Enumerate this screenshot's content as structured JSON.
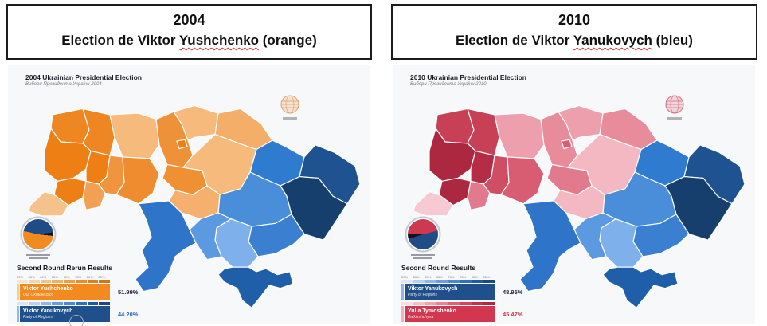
{
  "page": {
    "background": "#ffffff"
  },
  "panels": [
    {
      "header": {
        "year": "2004",
        "title_prefix": "Election de Viktor ",
        "candidate": "Yushchenko",
        "title_suffix": " (orange)"
      },
      "map_title": "2004 Ukrainian Presidential Election",
      "map_subtitle": "Вибори Президента України 2004",
      "map_bg": "#f7f8fa",
      "logo_color": "#e2a268",
      "pie": {
        "from": "96deg",
        "slices": [
          {
            "color": "#F28A1F",
            "start": 0,
            "end": 52
          },
          {
            "color": "#1F4C86",
            "start": 52,
            "end": 96.2
          },
          {
            "color": "#14141c",
            "start": 96.2,
            "end": 100
          }
        ]
      },
      "legend": {
        "heading": "Second Round Rerun Results",
        "ticks": [
          "50%",
          "55%",
          "60%",
          "65%",
          "70%",
          "75%",
          "80%+",
          "85%+"
        ],
        "rows": [
          {
            "name": "Viktor Yushchenko",
            "party": "Our Ukraine Bloc",
            "pct": "51.99%",
            "bar_color": "#F28A1F",
            "strip_color": "#F9CB94",
            "pct_color": "#23233f",
            "gradient": [
              "#FBE4C8",
              "#F9D4A6",
              "#F7C285",
              "#F5AF61",
              "#F29C40",
              "#EF8B24",
              "#E67E16",
              "#D7730E"
            ]
          },
          {
            "name": "Viktor Yanukovych",
            "party": "Party of Regions",
            "pct": "44.20%",
            "bar_color": "#20508C",
            "strip_color": "#93B7E6",
            "pct_color": "#2E6FBF",
            "gradient": [
              "#D9E7F8",
              "#B7D1F1",
              "#90B7E9",
              "#6A9DDF",
              "#4C87D4",
              "#2F6FC3",
              "#2259A4",
              "#1B4885"
            ]
          }
        ]
      },
      "regions": {
        "volyn": "#EE8722",
        "rivne": "#EE8722",
        "zhytomyr": "#F6BA7D",
        "kyiv": "#EF9138",
        "kyiv_city": "#ED7F15",
        "chernihiv": "#F6BA7D",
        "sumy": "#F4AE69",
        "lviv": "#ED7F15",
        "ternopil": "#ED7F15",
        "khmelnytskyi": "#F0953D",
        "vinnytsia": "#EE8C2F",
        "ivano_frankivsk": "#ED7F15",
        "zakarpattia": "#F6C28B",
        "chernivtsi": "#F2A154",
        "cherkasy": "#EF9033",
        "poltava": "#F6BA7D",
        "kirovohrad": "#F4B06C",
        "kharkiv": "#2F7BD0",
        "luhansk": "#1F5290",
        "donetsk": "#173F6E",
        "dnipropetrovsk": "#4A8EDA",
        "zaporizhzhia": "#3B7FD0",
        "kherson": "#7EB1EB",
        "mykolaiv": "#5B99E0",
        "odesa": "#2E74C8",
        "crimea": "#1F5FA9"
      }
    },
    {
      "header": {
        "year": "2010",
        "title_prefix": "Election de Viktor ",
        "candidate": "Yanukovych",
        "title_suffix": " (bleu)"
      },
      "map_title": "2010 Ukrainian Presidential Election",
      "map_subtitle": "Вибори Президента України 2010",
      "map_bg": "#f7f8fa",
      "logo_color": "#d96c80",
      "pie": {
        "from": "272deg",
        "slices": [
          {
            "color": "#CE3850",
            "start": 0,
            "end": 45.5
          },
          {
            "color": "#1F4C86",
            "start": 45.5,
            "end": 94.4
          },
          {
            "color": "#14141c",
            "start": 94.4,
            "end": 100
          }
        ]
      },
      "legend": {
        "heading": "Second Round Results",
        "ticks": [
          "50%",
          "55%",
          "60%",
          "65%",
          "70%",
          "75%",
          "80%+",
          "85%+"
        ],
        "rows": [
          {
            "name": "Viktor Yanukovych",
            "party": "Party of Regions",
            "pct": "48.95%",
            "bar_color": "#20508C",
            "strip_color": "#93B7E6",
            "pct_color": "#23233f",
            "gradient": [
              "#D9E7F8",
              "#B7D1F1",
              "#90B7E9",
              "#6A9DDF",
              "#4C87D4",
              "#2F6FC3",
              "#2259A4",
              "#1B4885"
            ]
          },
          {
            "name": "Yulia Tymoshenko",
            "party": "Batkivshchyna",
            "pct": "45.47%",
            "bar_color": "#D2374F",
            "strip_color": "#F3AFBA",
            "pct_color": "#D2374F",
            "gradient": [
              "#FBDCE1",
              "#F7C0C9",
              "#F2A2AF",
              "#EC8294",
              "#E36176",
              "#D8425C",
              "#C6304B",
              "#B22740"
            ]
          }
        ]
      },
      "regions": {
        "volyn": "#C84055",
        "rivne": "#C84055",
        "zhytomyr": "#EE9FAD",
        "kyiv": "#E88C9C",
        "kyiv_city": "#D85D73",
        "chernihiv": "#EE9FAD",
        "sumy": "#E88C9C",
        "lviv": "#AC2840",
        "ternopil": "#B42C46",
        "khmelnytskyi": "#CF4E64",
        "vinnytsia": "#D85D73",
        "ivano_frankivsk": "#AC2840",
        "zakarpattia": "#F7C9D2",
        "chernivtsi": "#E27A8D",
        "cherkasy": "#E27A8D",
        "poltava": "#F4B8C2",
        "kirovohrad": "#F4B8C2",
        "kharkiv": "#2F7BD0",
        "luhansk": "#1F5290",
        "donetsk": "#173F6E",
        "dnipropetrovsk": "#4A8EDA",
        "zaporizhzhia": "#3B7FD0",
        "kherson": "#7EB1EB",
        "mykolaiv": "#5B99E0",
        "odesa": "#2E74C8",
        "crimea": "#1F5FA9"
      }
    }
  ],
  "chart_data": [
    {
      "type": "bar",
      "title": "2004 Ukrainian Presidential Election — Second Round Rerun Results",
      "categories": [
        "Viktor Yushchenko (Our Ukraine Bloc)",
        "Viktor Yanukovych (Party of Regions)"
      ],
      "values": [
        51.99,
        44.2
      ],
      "colors": [
        "#F28A1F",
        "#20508C"
      ],
      "scale_ticks": [
        "50%",
        "55%",
        "60%",
        "65%",
        "70%",
        "75%",
        "80%+",
        "85%+"
      ]
    },
    {
      "type": "bar",
      "title": "2010 Ukrainian Presidential Election — Second Round Results",
      "categories": [
        "Viktor Yanukovych (Party of Regions)",
        "Yulia Tymoshenko (Batkivshchyna)"
      ],
      "values": [
        48.95,
        45.47
      ],
      "colors": [
        "#20508C",
        "#D2374F"
      ],
      "scale_ticks": [
        "50%",
        "55%",
        "60%",
        "65%",
        "70%",
        "75%",
        "80%+",
        "85%+"
      ]
    }
  ]
}
